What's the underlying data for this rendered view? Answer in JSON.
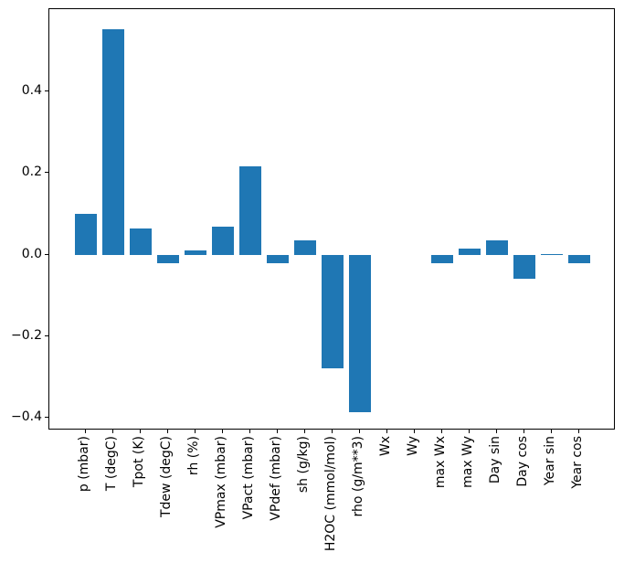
{
  "figure": {
    "background": "#ffffff"
  },
  "chart_data": {
    "type": "bar",
    "title": "",
    "xlabel": "",
    "ylabel": "",
    "categories": [
      "p (mbar)",
      "T (degC)",
      "Tpot (K)",
      "Tdew (degC)",
      "rh (%)",
      "VPmax (mbar)",
      "VPact (mbar)",
      "VPdef (mbar)",
      "sh (g/kg)",
      "H2OC (mmol/mol)",
      "rho (g/m**3)",
      "Wx",
      "Wy",
      "max Wx",
      "max Wy",
      "Day sin",
      "Day cos",
      "Year sin",
      "Year cos"
    ],
    "values": [
      0.1,
      0.552,
      0.065,
      -0.021,
      0.011,
      0.069,
      0.217,
      -0.022,
      0.034,
      -0.278,
      -0.387,
      0.0,
      0.0,
      -0.021,
      0.014,
      0.036,
      -0.058,
      0.002,
      -0.021
    ],
    "ylim": [
      -0.431,
      0.602
    ],
    "xlim": [
      -1.34,
      19.34
    ],
    "bar_width": 0.8,
    "yticks": [
      0.4,
      0.2,
      0.0,
      -0.2,
      -0.4
    ],
    "ytick_labels": [
      "0.4",
      "0.2",
      "0.0",
      "−0.2",
      "−0.4"
    ],
    "grid": false,
    "legend": null,
    "colors": {
      "bar": "#1f77b4",
      "spine": "#000000",
      "tick_text": "#000000",
      "background": "#ffffff"
    }
  }
}
